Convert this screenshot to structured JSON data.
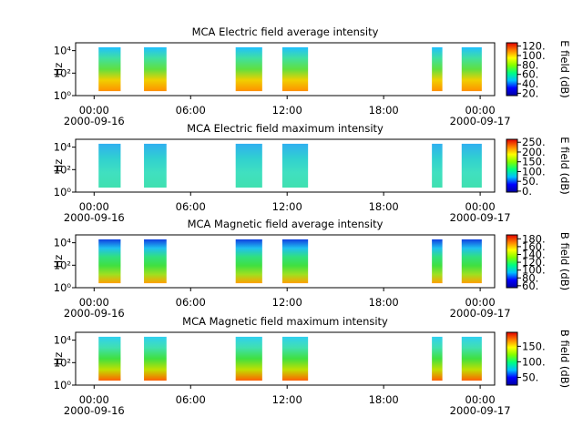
{
  "chart_data": [
    {
      "type": "spectrogram",
      "title": "MCA  Electric field average intensity",
      "ylabel": "Hz",
      "colorbar_label": "E field (dB)",
      "xlim": [
        -1.15,
        24.9
      ],
      "xticks": [
        {
          "value": 0,
          "label": "00:00"
        },
        {
          "value": 6,
          "label": "06:00"
        },
        {
          "value": 12,
          "label": "12:00"
        },
        {
          "value": 18,
          "label": "18:00"
        },
        {
          "value": 24,
          "label": "00:00"
        }
      ],
      "date_labels": [
        {
          "value": 0,
          "label": "2000-09-16"
        },
        {
          "value": 24,
          "label": "2000-09-17"
        }
      ],
      "log_y": true,
      "ylim": [
        1,
        50000
      ],
      "yticks": [
        {
          "value": 1,
          "label": "10⁰"
        },
        {
          "value": 100,
          "label": "10²"
        },
        {
          "value": 10000,
          "label": "10⁴"
        }
      ],
      "segments": [
        [
          0.28,
          1.65
        ],
        [
          3.1,
          4.5
        ],
        [
          8.8,
          10.45
        ],
        [
          11.7,
          13.3
        ],
        [
          21.0,
          21.65
        ],
        [
          22.85,
          24.1
        ]
      ],
      "freq_range": [
        2.5,
        20000
      ],
      "gradient": [
        "#20c0ff",
        "#40e0a0",
        "#60e040",
        "#f0d000",
        "#ff9000"
      ],
      "clim": [
        15,
        127
      ],
      "cticks": [
        {
          "value": 20,
          "label": "20."
        },
        {
          "value": 40,
          "label": "40."
        },
        {
          "value": 60,
          "label": "60."
        },
        {
          "value": 80,
          "label": "80."
        },
        {
          "value": 100,
          "label": "100."
        },
        {
          "value": 120,
          "label": "120."
        }
      ]
    },
    {
      "type": "spectrogram",
      "title": "MCA  Electric field maximum intensity",
      "ylabel": "Hz",
      "colorbar_label": "E field (dB)",
      "xlim": [
        -1.15,
        24.9
      ],
      "xticks": [
        {
          "value": 0,
          "label": "00:00"
        },
        {
          "value": 6,
          "label": "06:00"
        },
        {
          "value": 12,
          "label": "12:00"
        },
        {
          "value": 18,
          "label": "18:00"
        },
        {
          "value": 24,
          "label": "00:00"
        }
      ],
      "date_labels": [
        {
          "value": 0,
          "label": "2000-09-16"
        },
        {
          "value": 24,
          "label": "2000-09-17"
        }
      ],
      "log_y": true,
      "ylim": [
        1,
        50000
      ],
      "yticks": [
        {
          "value": 1,
          "label": "10⁰"
        },
        {
          "value": 100,
          "label": "10²"
        },
        {
          "value": 10000,
          "label": "10⁴"
        }
      ],
      "segments": [
        [
          0.28,
          1.65
        ],
        [
          3.1,
          4.5
        ],
        [
          8.8,
          10.45
        ],
        [
          11.7,
          13.3
        ],
        [
          21.0,
          21.65
        ],
        [
          22.85,
          24.1
        ]
      ],
      "freq_range": [
        2.5,
        20000
      ],
      "gradient": [
        "#30b0f0",
        "#30d0d0",
        "#40e0c0",
        "#40e0b0"
      ],
      "clim": [
        -5,
        265
      ],
      "cticks": [
        {
          "value": 0,
          "label": "0."
        },
        {
          "value": 50,
          "label": "50."
        },
        {
          "value": 100,
          "label": "100."
        },
        {
          "value": 150,
          "label": "150."
        },
        {
          "value": 200,
          "label": "200."
        },
        {
          "value": 250,
          "label": "250."
        }
      ]
    },
    {
      "type": "spectrogram",
      "title": "MCA  Magnetic field average intensity",
      "ylabel": "Hz",
      "colorbar_label": "B field (dB)",
      "xlim": [
        -1.15,
        24.9
      ],
      "xticks": [
        {
          "value": 0,
          "label": "00:00"
        },
        {
          "value": 6,
          "label": "06:00"
        },
        {
          "value": 12,
          "label": "12:00"
        },
        {
          "value": 18,
          "label": "18:00"
        },
        {
          "value": 24,
          "label": "00:00"
        }
      ],
      "date_labels": [
        {
          "value": 0,
          "label": "2000-09-16"
        },
        {
          "value": 24,
          "label": "2000-09-17"
        }
      ],
      "log_y": true,
      "ylim": [
        1,
        50000
      ],
      "yticks": [
        {
          "value": 1,
          "label": "10⁰"
        },
        {
          "value": 100,
          "label": "10²"
        },
        {
          "value": 10000,
          "label": "10⁴"
        }
      ],
      "segments": [
        [
          0.28,
          1.65
        ],
        [
          3.1,
          4.5
        ],
        [
          8.8,
          10.45
        ],
        [
          11.7,
          13.3
        ],
        [
          21.0,
          21.65
        ],
        [
          22.85,
          24.1
        ]
      ],
      "freq_range": [
        2.5,
        20000
      ],
      "gradient": [
        "#1040e0",
        "#20c0f0",
        "#30e080",
        "#40e040",
        "#a0e020",
        "#ffa000"
      ],
      "clim": [
        55,
        190
      ],
      "cticks": [
        {
          "value": 60,
          "label": "60."
        },
        {
          "value": 80,
          "label": "80."
        },
        {
          "value": 100,
          "label": "100."
        },
        {
          "value": 120,
          "label": "120."
        },
        {
          "value": 140,
          "label": "140."
        },
        {
          "value": 160,
          "label": "160."
        },
        {
          "value": 180,
          "label": "180."
        }
      ]
    },
    {
      "type": "spectrogram",
      "title": "MCA  Magnetic field maximum intensity",
      "ylabel": "Hz",
      "colorbar_label": "B field (dB)",
      "xlim": [
        -1.15,
        24.9
      ],
      "xticks": [
        {
          "value": 0,
          "label": "00:00"
        },
        {
          "value": 6,
          "label": "06:00"
        },
        {
          "value": 12,
          "label": "12:00"
        },
        {
          "value": 18,
          "label": "18:00"
        },
        {
          "value": 24,
          "label": "00:00"
        }
      ],
      "date_labels": [
        {
          "value": 0,
          "label": "2000-09-16"
        },
        {
          "value": 24,
          "label": "2000-09-17"
        }
      ],
      "log_y": true,
      "ylim": [
        1,
        50000
      ],
      "yticks": [
        {
          "value": 1,
          "label": "10⁰"
        },
        {
          "value": 100,
          "label": "10²"
        },
        {
          "value": 10000,
          "label": "10⁴"
        }
      ],
      "segments": [
        [
          0.28,
          1.65
        ],
        [
          3.1,
          4.5
        ],
        [
          8.8,
          10.45
        ],
        [
          11.7,
          13.3
        ],
        [
          21.0,
          21.65
        ],
        [
          22.85,
          24.1
        ]
      ],
      "freq_range": [
        2.5,
        20000
      ],
      "gradient": [
        "#30d0f0",
        "#40e0b0",
        "#40e040",
        "#c0e000",
        "#ff6000"
      ],
      "clim": [
        25,
        195
      ],
      "cticks": [
        {
          "value": 50,
          "label": "50."
        },
        {
          "value": 100,
          "label": "100."
        },
        {
          "value": 150,
          "label": "150."
        }
      ]
    }
  ]
}
